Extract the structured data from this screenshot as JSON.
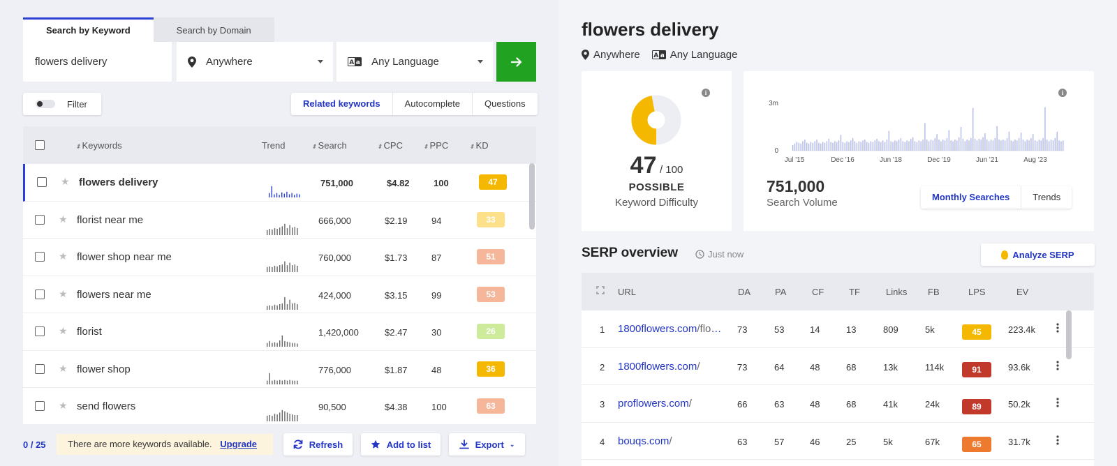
{
  "tabs": [
    {
      "label": "Search by Keyword",
      "active": true
    },
    {
      "label": "Search by Domain",
      "active": false
    }
  ],
  "search": {
    "keyword": "flowers delivery",
    "location": "Anywhere",
    "language": "Any Language"
  },
  "filter": {
    "label": "Filter"
  },
  "kw_modes": [
    "Related keywords",
    "Autocomplete",
    "Questions"
  ],
  "kw_table": {
    "headers": {
      "keywords": "Keywords",
      "trend": "Trend",
      "search": "Search",
      "cpc": "CPC",
      "ppc": "PPC",
      "kd": "KD"
    },
    "rows": [
      {
        "keyword": "flowers delivery",
        "search": "751,000",
        "cpc": "$4.82",
        "ppc": "100",
        "kd": "47",
        "kd_color": "#f5b800",
        "trend": [
          0.35,
          0.9,
          0.25,
          0.35,
          0.2,
          0.4,
          0.3,
          0.45,
          0.25,
          0.35,
          0.2,
          0.3,
          0.25
        ]
      },
      {
        "keyword": "florist near me",
        "search": "666,000",
        "cpc": "$2.19",
        "ppc": "94",
        "kd": "33",
        "kd_color": "#fde08a",
        "trend": [
          0.4,
          0.5,
          0.45,
          0.55,
          0.5,
          0.6,
          0.7,
          0.9,
          0.55,
          0.8,
          0.6,
          0.65,
          0.55
        ]
      },
      {
        "keyword": "flower shop near me",
        "search": "760,000",
        "cpc": "$1.73",
        "ppc": "87",
        "kd": "51",
        "kd_color": "#f6b69a",
        "trend": [
          0.4,
          0.45,
          0.4,
          0.5,
          0.45,
          0.55,
          0.6,
          0.85,
          0.55,
          0.75,
          0.55,
          0.6,
          0.5
        ]
      },
      {
        "keyword": "flowers near me",
        "search": "424,000",
        "cpc": "$3.15",
        "ppc": "99",
        "kd": "53",
        "kd_color": "#f6b69a",
        "trend": [
          0.3,
          0.35,
          0.3,
          0.4,
          0.35,
          0.45,
          0.5,
          1.0,
          0.45,
          0.8,
          0.5,
          0.55,
          0.45
        ]
      },
      {
        "keyword": "florist",
        "search": "1,420,000",
        "cpc": "$2.47",
        "ppc": "30",
        "kd": "26",
        "kd_color": "#cdeb9a",
        "trend": [
          0.3,
          0.45,
          0.3,
          0.35,
          0.3,
          0.5,
          0.9,
          0.45,
          0.4,
          0.35,
          0.3,
          0.3,
          0.25
        ]
      },
      {
        "keyword": "flower shop",
        "search": "776,000",
        "cpc": "$1.87",
        "ppc": "48",
        "kd": "36",
        "kd_color": "#f5b800",
        "trend": [
          0.3,
          0.9,
          0.3,
          0.35,
          0.3,
          0.35,
          0.3,
          0.35,
          0.3,
          0.35,
          0.3,
          0.3,
          0.3
        ]
      },
      {
        "keyword": "send flowers",
        "search": "90,500",
        "cpc": "$4.38",
        "ppc": "100",
        "kd": "63",
        "kd_color": "#f6b69a",
        "trend": [
          0.45,
          0.5,
          0.45,
          0.6,
          0.55,
          0.7,
          0.9,
          0.8,
          0.7,
          0.6,
          0.55,
          0.5,
          0.5
        ]
      }
    ]
  },
  "footer": {
    "count": "0 / 25",
    "notice": "There are more keywords available.",
    "upgrade": "Upgrade",
    "refresh": "Refresh",
    "add_to_list": "Add to list",
    "export": "Export"
  },
  "overview": {
    "title": "flowers delivery",
    "location": "Anywhere",
    "language": "Any Language",
    "kd_value": "47",
    "kd_max": "/ 100",
    "kd_word": "POSSIBLE",
    "kd_label": "Keyword Difficulty",
    "volume": "751,000",
    "volume_label": "Search Volume",
    "volume_tabs": [
      "Monthly Searches",
      "Trends"
    ],
    "info_icon": "info-icon"
  },
  "chart_data": {
    "type": "bar",
    "y_ticks": [
      "3m",
      "0"
    ],
    "x_ticks": [
      "Jul '15",
      "Dec '16",
      "Jun '18",
      "Dec '19",
      "Jun '21",
      "Aug '23"
    ],
    "values": [
      0.35,
      0.45,
      0.55,
      0.5,
      0.45,
      0.6,
      0.7,
      0.5,
      0.45,
      0.55,
      0.5,
      0.6,
      0.7,
      0.5,
      0.45,
      0.55,
      0.5,
      0.6,
      0.75,
      0.55,
      0.5,
      0.6,
      0.55,
      0.65,
      1.0,
      0.55,
      0.5,
      0.6,
      0.55,
      0.65,
      0.8,
      0.6,
      0.5,
      0.6,
      0.55,
      0.65,
      0.7,
      0.55,
      0.5,
      0.6,
      0.55,
      0.65,
      0.75,
      0.6,
      0.55,
      0.65,
      0.55,
      0.7,
      1.25,
      0.6,
      0.55,
      0.65,
      0.6,
      0.7,
      0.8,
      0.6,
      0.55,
      0.65,
      0.6,
      0.75,
      0.85,
      0.6,
      0.55,
      0.65,
      0.6,
      0.7,
      1.75,
      0.7,
      0.6,
      0.7,
      0.65,
      0.8,
      1.05,
      0.7,
      0.6,
      0.7,
      0.65,
      0.8,
      1.3,
      0.65,
      0.6,
      0.7,
      0.65,
      0.85,
      1.5,
      0.75,
      0.6,
      0.7,
      0.65,
      0.8,
      2.7,
      0.75,
      0.65,
      0.75,
      0.7,
      0.85,
      1.1,
      0.7,
      0.6,
      0.7,
      0.65,
      0.8,
      1.55,
      0.7,
      0.65,
      0.7,
      0.65,
      0.8,
      1.2,
      0.65,
      0.6,
      0.7,
      0.65,
      0.8,
      1.15,
      0.7,
      0.6,
      0.7,
      0.65,
      0.8,
      1.05,
      0.65,
      0.6,
      0.7,
      0.65,
      0.8,
      2.75,
      0.7,
      0.6,
      0.7,
      0.65,
      0.8,
      1.2,
      0.65,
      0.6,
      0.65
    ],
    "ylim": [
      0,
      3000000
    ]
  },
  "serp": {
    "title": "SERP overview",
    "time": "Just now",
    "analyze": "Analyze SERP",
    "headers": {
      "url": "URL",
      "da": "DA",
      "pa": "PA",
      "cf": "CF",
      "tf": "TF",
      "links": "Links",
      "fb": "FB",
      "lps": "LPS",
      "ev": "EV"
    },
    "rows": [
      {
        "rank": "1",
        "domain": "1800flowers.com",
        "path": "/flowers-delivery",
        "da": "73",
        "pa": "53",
        "cf": "14",
        "tf": "13",
        "links": "809",
        "fb": "5k",
        "lps": "45",
        "lps_color": "#f5b800",
        "ev": "223.4k"
      },
      {
        "rank": "2",
        "domain": "1800flowers.com",
        "path": "/",
        "da": "73",
        "pa": "64",
        "cf": "48",
        "tf": "68",
        "links": "13k",
        "fb": "114k",
        "lps": "91",
        "lps_color": "#c0392b",
        "ev": "93.6k"
      },
      {
        "rank": "3",
        "domain": "proflowers.com",
        "path": "/",
        "da": "66",
        "pa": "63",
        "cf": "48",
        "tf": "68",
        "links": "41k",
        "fb": "24k",
        "lps": "89",
        "lps_color": "#c0392b",
        "ev": "50.2k"
      },
      {
        "rank": "4",
        "domain": "bouqs.com",
        "path": "/",
        "da": "63",
        "pa": "57",
        "cf": "46",
        "tf": "25",
        "links": "5k",
        "fb": "67k",
        "lps": "65",
        "lps_color": "#ee7a30",
        "ev": "31.7k"
      }
    ]
  }
}
